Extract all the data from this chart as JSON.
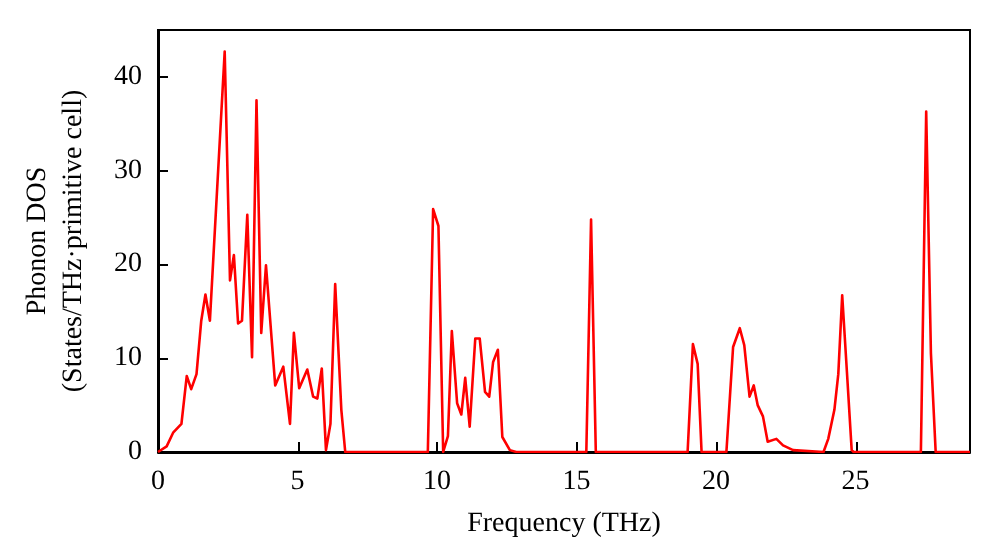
{
  "chart_data": {
    "type": "line",
    "xlabel": "Frequency (THz)",
    "ylabel": "Phonon DOS\n(States/THz·primitive cell)",
    "xlim": [
      0,
      29.1
    ],
    "ylim": [
      0,
      45
    ],
    "xticks": [
      0,
      5,
      10,
      15,
      20,
      25
    ],
    "yticks": [
      0,
      10,
      20,
      30,
      40
    ],
    "grid": false,
    "marker": "none",
    "line_style": "solid",
    "series": [
      {
        "color": "#ff0000",
        "x": [
          0,
          0.31,
          0.55,
          0.84,
          1.03,
          1.19,
          1.38,
          1.55,
          1.7,
          1.86,
          2.39,
          2.58,
          2.72,
          2.87,
          3.01,
          3.2,
          3.37,
          3.53,
          3.7,
          3.87,
          4.2,
          4.49,
          4.73,
          4.87,
          5.06,
          5.35,
          5.56,
          5.71,
          5.87,
          6.02,
          6.18,
          6.35,
          6.57,
          6.71,
          9.67,
          9.86,
          10.05,
          10.22,
          10.39,
          10.53,
          10.72,
          10.87,
          11.01,
          11.17,
          11.37,
          11.53,
          11.72,
          11.87,
          12.01,
          12.18,
          12.34,
          12.61,
          12.84,
          15.35,
          15.52,
          15.69,
          18.98,
          19.17,
          19.34,
          19.48,
          20.37,
          20.61,
          20.85,
          21.01,
          21.2,
          21.35,
          21.49,
          21.68,
          21.85,
          22.16,
          22.4,
          22.76,
          23.85,
          24.02,
          24.24,
          24.38,
          24.52,
          24.69,
          24.86,
          24.93,
          27.34,
          27.53,
          27.7,
          27.87,
          29.1
        ],
        "values": [
          0,
          0.6,
          2.1,
          3.0,
          8.1,
          6.7,
          8.3,
          14.0,
          16.8,
          14.0,
          42.7,
          18.3,
          21.0,
          13.7,
          14.0,
          25.3,
          10.1,
          37.5,
          12.7,
          19.9,
          7.1,
          9.1,
          3.0,
          12.7,
          6.8,
          8.8,
          5.9,
          5.7,
          8.9,
          0.2,
          3.0,
          17.9,
          4.5,
          0,
          0,
          25.9,
          24.1,
          0,
          1.7,
          12.9,
          5.2,
          4.0,
          7.9,
          2.7,
          12.1,
          12.1,
          6.4,
          5.9,
          9.6,
          10.9,
          1.6,
          0.2,
          0,
          0,
          24.8,
          0,
          0,
          11.5,
          9.4,
          0,
          0,
          11.2,
          13.2,
          11.4,
          5.9,
          7.1,
          5.0,
          3.8,
          1.1,
          1.4,
          0.7,
          0.2,
          0,
          1.4,
          4.5,
          8.3,
          16.7,
          8.5,
          0.2,
          0,
          0,
          36.3,
          10.5,
          0,
          0
        ]
      }
    ]
  }
}
